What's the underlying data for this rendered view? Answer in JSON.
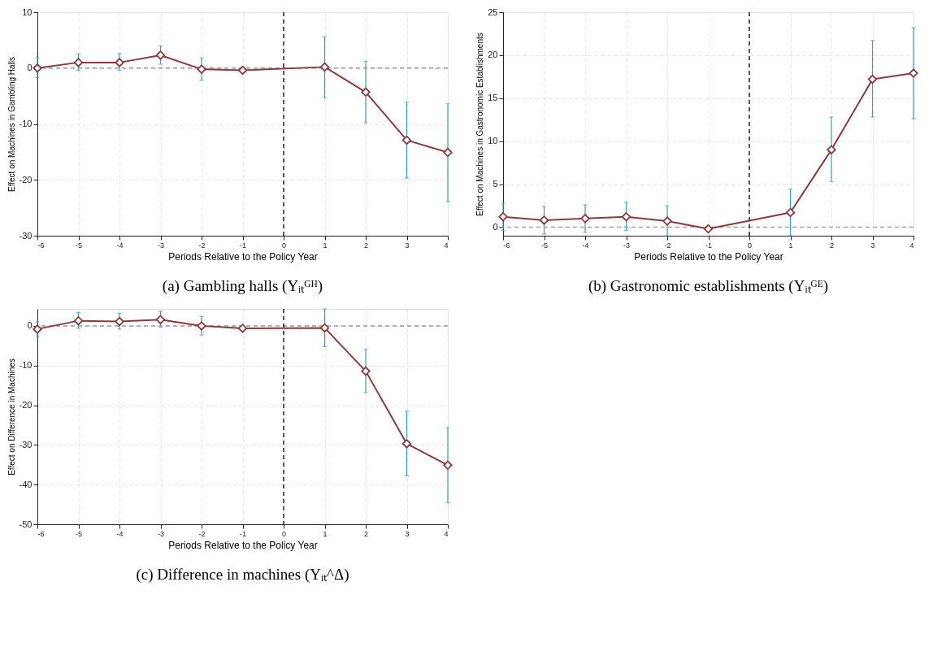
{
  "chart_data": [
    {
      "type": "line",
      "title": "(a) Gambling halls (Yᵢₜᴳᴴ)",
      "xlabel": "Periods Relative to the Policy Year",
      "ylabel": "Effect on Machines in Gambling Halls",
      "x": [
        -6,
        -5,
        -4,
        -3,
        -2,
        -1,
        1,
        2,
        3,
        4
      ],
      "xlim": [
        -6,
        4
      ],
      "xticks": [
        -6,
        -5,
        -4,
        -3,
        -2,
        -1,
        0,
        1,
        2,
        3,
        4
      ],
      "ylim": [
        -30,
        10
      ],
      "yticks": [
        -30,
        -20,
        -10,
        0,
        10
      ],
      "grid": true,
      "marker": "diamond",
      "line_style": "solid",
      "ref_lines": [
        {
          "axis": "y",
          "value": 0,
          "color": "#999999",
          "line_style": "dashed"
        },
        {
          "axis": "x",
          "value": 0,
          "color": "#000000",
          "line_style": "dashed"
        }
      ],
      "series": [
        {
          "color": "#8b3a3e",
          "values": [
            0.0,
            1.0,
            1.0,
            2.3,
            -0.2,
            -0.4,
            0.2,
            -4.3,
            -12.9,
            -15.1
          ],
          "errors": [
            [
              -1.7,
              1.8
            ],
            [
              -0.4,
              2.5
            ],
            [
              -0.4,
              2.6
            ],
            [
              0.7,
              4.0
            ],
            [
              -2.2,
              1.8
            ],
            null,
            [
              -5.3,
              5.6
            ],
            [
              -9.8,
              1.2
            ],
            [
              -19.7,
              -6.1
            ],
            [
              -23.9,
              -6.4
            ]
          ]
        }
      ]
    },
    {
      "type": "line",
      "title": "(b) Gastronomic establishments (Yᵢₜᴳᴱ)",
      "xlabel": "Periods Relative to the Policy Year",
      "ylabel": "Effect on Machines in Gastronomic Establishments",
      "x": [
        -6,
        -5,
        -4,
        -3,
        -2,
        -1,
        1,
        2,
        3,
        4
      ],
      "xlim": [
        -6,
        4
      ],
      "xticks": [
        -6,
        -5,
        -4,
        -3,
        -2,
        -1,
        0,
        1,
        2,
        3,
        4
      ],
      "ylim": [
        -1,
        25
      ],
      "yticks": [
        0,
        5,
        10,
        15,
        20,
        25
      ],
      "grid": true,
      "marker": "diamond",
      "line_style": "solid",
      "ref_lines": [
        {
          "axis": "y",
          "value": 0,
          "color": "#999999",
          "line_style": "dashed"
        },
        {
          "axis": "x",
          "value": 0,
          "color": "#000000",
          "line_style": "dashed"
        }
      ],
      "series": [
        {
          "color": "#8b3a3e",
          "values": [
            1.2,
            0.8,
            1.0,
            1.2,
            0.7,
            -0.2,
            1.7,
            9.0,
            17.2,
            17.9
          ],
          "errors": [
            [
              -0.4,
              2.8
            ],
            [
              -0.8,
              2.4
            ],
            [
              -0.6,
              2.6
            ],
            [
              -0.4,
              2.9
            ],
            [
              -1.0,
              2.5
            ],
            null,
            [
              -1.0,
              4.4
            ],
            [
              5.3,
              12.8
            ],
            [
              12.8,
              21.7
            ],
            [
              12.6,
              23.2
            ]
          ]
        }
      ]
    },
    {
      "type": "line",
      "title": "(c) Difference in machines (Yᵢₜ^Δ)",
      "xlabel": "Periods Relative to the Policy Year",
      "ylabel": "Effect on Difference in Machines",
      "x": [
        -6,
        -5,
        -4,
        -3,
        -2,
        -1,
        1,
        2,
        3,
        4
      ],
      "xlim": [
        -6,
        4
      ],
      "xticks": [
        -6,
        -5,
        -4,
        -3,
        -2,
        -1,
        0,
        1,
        2,
        3,
        4
      ],
      "ylim": [
        -50,
        4.3
      ],
      "yticks": [
        -50,
        -40,
        -30,
        -20,
        -10,
        0
      ],
      "grid": true,
      "marker": "diamond",
      "line_style": "solid",
      "ref_lines": [
        {
          "axis": "y",
          "value": 0,
          "color": "#999999",
          "line_style": "dashed"
        },
        {
          "axis": "x",
          "value": 0,
          "color": "#000000",
          "line_style": "dashed"
        }
      ],
      "series": [
        {
          "color": "#8b3a3e",
          "values": [
            -0.8,
            1.3,
            1.1,
            1.6,
            0.0,
            -0.6,
            -0.5,
            -11.4,
            -29.7,
            -35.1
          ],
          "errors": [
            [
              -2.6,
              1.0
            ],
            [
              -0.6,
              3.4
            ],
            [
              -0.8,
              3.2
            ],
            [
              -0.3,
              3.7
            ],
            [
              -2.3,
              2.4
            ],
            null,
            [
              -5.2,
              4.3
            ],
            [
              -16.8,
              -5.9
            ],
            [
              -37.8,
              -21.5
            ],
            [
              -44.6,
              -25.6
            ]
          ]
        }
      ]
    }
  ]
}
